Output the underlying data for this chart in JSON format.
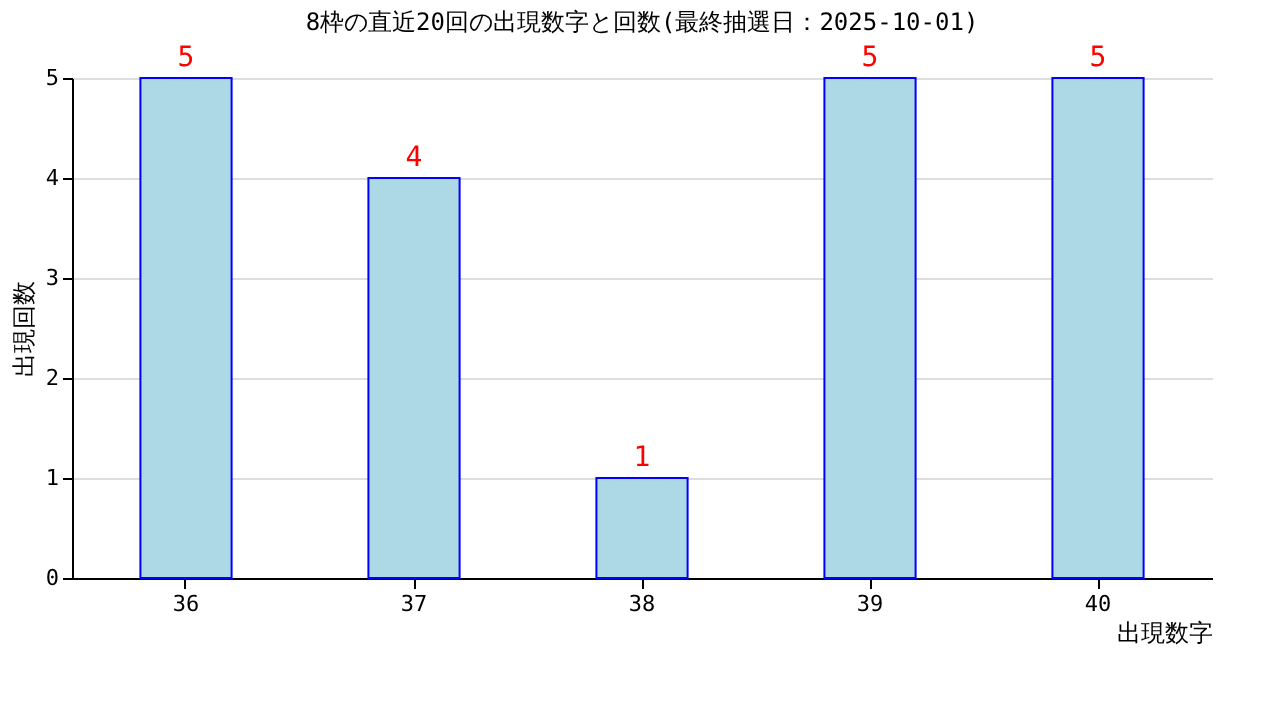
{
  "chart_data": {
    "type": "bar",
    "title": "8枠の直近20回の出現数字と回数(最終抽選日：2025-10-01)",
    "xlabel": "出現数字",
    "ylabel": "出現回数",
    "categories": [
      "36",
      "37",
      "38",
      "39",
      "40"
    ],
    "series": [
      {
        "color": "#add8e6",
        "values": [
          5,
          4,
          1,
          5,
          5
        ]
      }
    ],
    "ylim": [
      0,
      5
    ],
    "yticks": [
      0,
      1,
      2,
      3,
      4,
      5
    ],
    "grid": "y",
    "data_labels": true
  }
}
